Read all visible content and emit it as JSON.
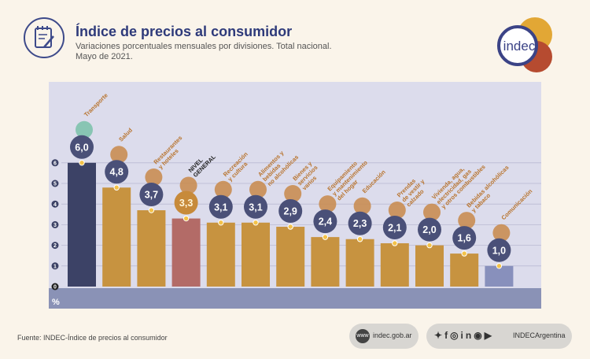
{
  "header": {
    "title": "Índice de precios al consumidor",
    "subtitle_line1": "Variaciones porcentuales mensuales por divisiones. Total nacional.",
    "subtitle_line2": "Mayo de 2021."
  },
  "logo": {
    "text": "indec"
  },
  "footer": {
    "source": "Fuente: INDEC-Índice de precios al consumidor",
    "web": "indec.gob.ar",
    "web_icon": "www",
    "social_handle": "INDECArgentina"
  },
  "colors": {
    "plot_bg": "#dcdcec",
    "bar_gold": "#c79340",
    "bar_transport": "#3c4266",
    "bar_general": "#b36b67",
    "bar_comm": "#8890bc",
    "badge": "#4a5078",
    "label": "#b8742e"
  },
  "chart_data": {
    "type": "bar",
    "title": "Índice de precios al consumidor",
    "ylabel": "%",
    "ylim": [
      0,
      6
    ],
    "yticks": [
      "0",
      "1",
      "2",
      "3",
      "4",
      "5",
      "6"
    ],
    "categories": [
      "Transporte",
      "Salud",
      "Restaurantes y hoteles",
      "NIVEL GENERAL",
      "Recreación y cultura",
      "Alimentos y bebidas no alcohólicas",
      "Bienes y servicios varios",
      "Equipamiento y mantenimiento del hogar",
      "Educación",
      "Prendas de vestir y calzado",
      "Vivienda, agua, electricidad, gas y otros combustibles",
      "Bebidas alcohólicas y tabaco",
      "Comunicación"
    ],
    "label_lines": [
      [
        "Transporte"
      ],
      [
        "Salud"
      ],
      [
        "Restaurantes",
        "y hoteles"
      ],
      [
        "NIVEL",
        "GENERAL"
      ],
      [
        "Recreación",
        "y cultura"
      ],
      [
        "Alimentos y",
        "bebidas",
        "no alcohólicas"
      ],
      [
        "Bienes y",
        "servicios",
        "varios"
      ],
      [
        "Equipamiento",
        "y mantenimiento",
        "del hogar"
      ],
      [
        "Educación"
      ],
      [
        "Prendas",
        "de vestir y",
        "calzado"
      ],
      [
        "Vivienda, agua,",
        "electricidad, gas",
        "y otros combustibles"
      ],
      [
        "Bebidas alcohólicas",
        "y tabaco"
      ],
      [
        "Comunicación"
      ]
    ],
    "values": [
      6.0,
      4.8,
      3.7,
      3.3,
      3.1,
      3.1,
      2.9,
      2.4,
      2.3,
      2.1,
      2.0,
      1.6,
      1.0
    ],
    "value_labels": [
      "6,0",
      "4,8",
      "3,7",
      "3,3",
      "3,1",
      "3,1",
      "2,9",
      "2,4",
      "2,3",
      "2,1",
      "2,0",
      "1,6",
      "1,0"
    ]
  }
}
